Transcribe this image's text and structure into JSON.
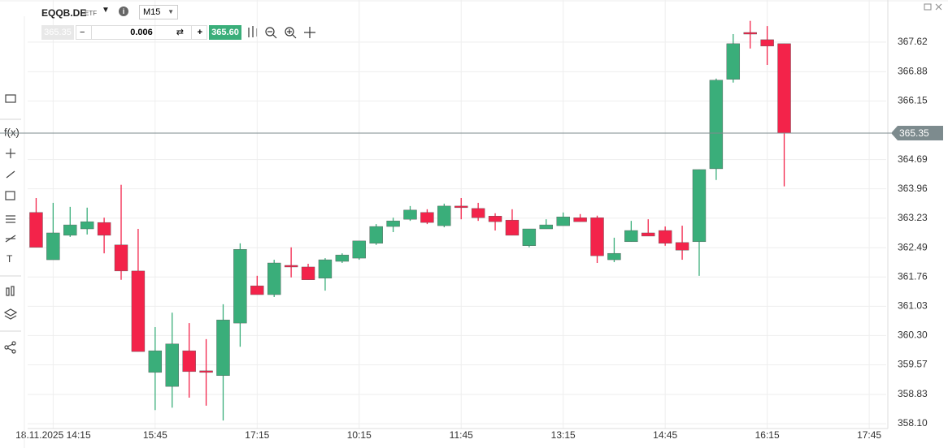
{
  "header": {
    "symbol": "EQQB.DE",
    "asset_type": "ETF",
    "timeframe": "M15"
  },
  "trade": {
    "bid": "365.35",
    "quantity": "0.006",
    "ask": "365.60"
  },
  "chart_data": {
    "type": "candlestick",
    "categories": [
      null,
      "18.11.2025 14:15",
      null,
      null,
      null,
      null,
      null,
      "15:45",
      null,
      null,
      null,
      null,
      null,
      "17:15",
      null,
      null,
      null,
      null,
      null,
      "10:15",
      null,
      null,
      null,
      null,
      null,
      "11:45",
      null,
      null,
      null,
      null,
      null,
      "13:15",
      null,
      null,
      null,
      null,
      null,
      "14:45",
      null,
      null,
      null,
      null,
      null,
      "16:15",
      null,
      null,
      null,
      null,
      null,
      "17:45"
    ],
    "open": [
      363.37,
      362.19,
      362.8,
      362.96,
      363.12,
      362.56,
      361.91,
      359.38,
      359.03,
      359.92,
      359.42,
      359.3,
      360.61,
      361.54,
      361.32,
      362.05,
      362.01,
      361.73,
      362.15,
      362.23,
      362.6,
      363.02,
      363.2,
      363.37,
      363.04,
      363.53,
      363.47,
      363.28,
      363.18,
      362.54,
      362.96,
      363.04,
      363.24,
      363.24,
      362.19,
      362.64,
      362.86,
      362.92,
      362.62,
      362.64,
      364.46,
      366.69,
      367.86,
      367.68,
      367.58,
      null,
      null,
      null,
      null,
      null
    ],
    "high": [
      363.73,
      363.61,
      363.51,
      363.49,
      363.24,
      364.06,
      362.96,
      360.51,
      360.87,
      360.61,
      360.21,
      361.08,
      362.6,
      361.79,
      362.19,
      362.5,
      362.09,
      362.23,
      362.35,
      362.66,
      363.08,
      363.24,
      363.53,
      363.45,
      363.59,
      363.73,
      363.61,
      363.35,
      363.45,
      362.96,
      363.2,
      363.37,
      363.33,
      363.29,
      362.74,
      363.16,
      363.2,
      363.02,
      363.04,
      364.44,
      366.71,
      367.82,
      368.15,
      368.02,
      367.58,
      null,
      null,
      null,
      null,
      null
    ],
    "low": [
      362.5,
      362.19,
      362.76,
      362.82,
      362.35,
      361.69,
      359.9,
      358.44,
      358.5,
      358.75,
      358.55,
      358.18,
      360.02,
      361.32,
      361.26,
      361.75,
      361.69,
      361.42,
      362.11,
      362.19,
      362.56,
      362.88,
      363.16,
      363.08,
      363.0,
      363.2,
      363.16,
      362.92,
      362.8,
      362.5,
      362.96,
      363.04,
      363.14,
      362.11,
      362.13,
      362.64,
      362.78,
      362.54,
      362.19,
      361.79,
      364.18,
      366.61,
      367.46,
      367.05,
      364.02,
      null,
      null,
      null,
      null,
      null
    ],
    "close": [
      362.5,
      362.86,
      363.06,
      363.14,
      362.8,
      361.91,
      359.9,
      359.92,
      360.09,
      359.4,
      359.38,
      360.69,
      362.45,
      361.32,
      362.11,
      362.01,
      361.69,
      362.19,
      362.31,
      362.66,
      363.02,
      363.16,
      363.43,
      363.12,
      363.53,
      363.49,
      363.24,
      363.14,
      362.8,
      362.96,
      363.06,
      363.26,
      363.14,
      362.29,
      362.35,
      362.92,
      362.78,
      362.6,
      362.43,
      364.44,
      366.67,
      367.58,
      367.82,
      367.52,
      365.35,
      null,
      null,
      null,
      null,
      null
    ],
    "up_color": "#3aae7a",
    "down_color": "#f3234a",
    "last_price": 365.35,
    "ylim": [
      357.98,
      368.67
    ],
    "yticks": [
      {
        "value": 358.1,
        "label": "358.10"
      },
      358.83,
      359.57,
      {
        "value": 360.3,
        "label": "360.30"
      },
      361.03,
      361.76,
      362.49,
      363.23,
      363.96,
      364.69,
      366.15,
      366.88,
      367.62
    ],
    "grid": true
  }
}
